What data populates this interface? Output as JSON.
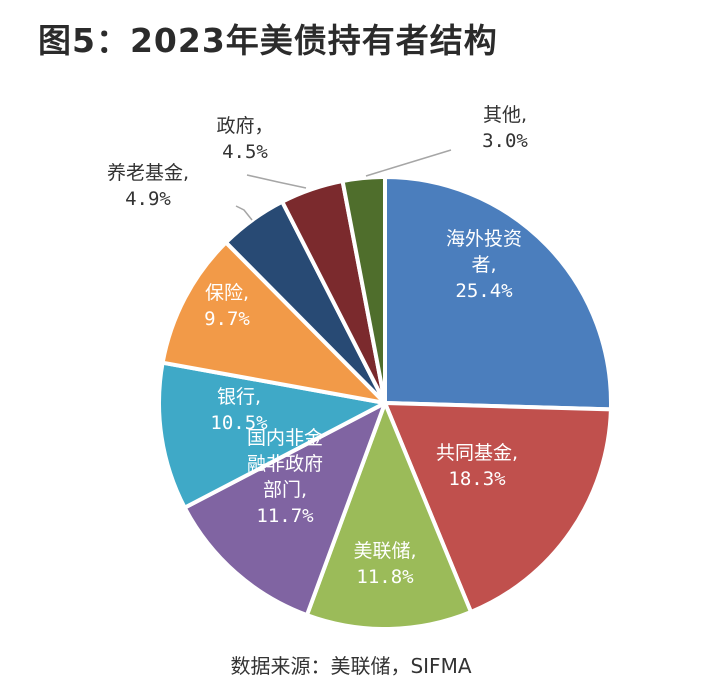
{
  "title": "图5：2023年美债持有者结构",
  "source": "数据来源：美联储，SIFMA",
  "chart_data": {
    "type": "pie",
    "title": "图5：2023年美债持有者结构",
    "unit": "%",
    "start_angle_deg": 0,
    "direction": "clockwise",
    "slices": [
      {
        "label": "海外投资者",
        "lines": [
          "海外投资",
          "者,"
        ],
        "pct_text": "25.4%",
        "value": 25.4,
        "color": "#4b7ebd",
        "label_color": "#ffffff",
        "callout": false
      },
      {
        "label": "共同基金",
        "lines": [
          "共同基金,"
        ],
        "pct_text": "18.3%",
        "value": 18.3,
        "color": "#c0504d",
        "label_color": "#ffffff",
        "callout": false
      },
      {
        "label": "美联储",
        "lines": [
          "美联储,"
        ],
        "pct_text": "11.8%",
        "value": 11.8,
        "color": "#9bbb59",
        "label_color": "#ffffff",
        "callout": false
      },
      {
        "label": "国内非金融非政府部门",
        "lines": [
          "国内非金",
          "融非政府",
          "部门,"
        ],
        "pct_text": "11.7%",
        "value": 11.7,
        "color": "#8064a2",
        "label_color": "#ffffff",
        "callout": false
      },
      {
        "label": "银行",
        "lines": [
          "银行,"
        ],
        "pct_text": "10.5%",
        "value": 10.5,
        "color": "#3fa9c7",
        "label_color": "#ffffff",
        "callout": false
      },
      {
        "label": "保险",
        "lines": [
          "保险,"
        ],
        "pct_text": "9.7%",
        "value": 9.7,
        "color": "#f29a48",
        "label_color": "#ffffff",
        "callout": false
      },
      {
        "label": "养老基金",
        "lines": [
          "养老基金,"
        ],
        "pct_text": "4.9%",
        "value": 4.9,
        "color": "#284a74",
        "label_color": "#333333",
        "callout": true
      },
      {
        "label": "政府",
        "lines": [
          "政府，"
        ],
        "pct_text": "4.5%",
        "value": 4.5,
        "color": "#7b2a2d",
        "label_color": "#333333",
        "callout": true
      },
      {
        "label": "其他",
        "lines": [
          "其他,"
        ],
        "pct_text": "3.0%",
        "value": 3.0,
        "color": "#4f6e2c",
        "label_color": "#333333",
        "callout": true
      }
    ]
  }
}
